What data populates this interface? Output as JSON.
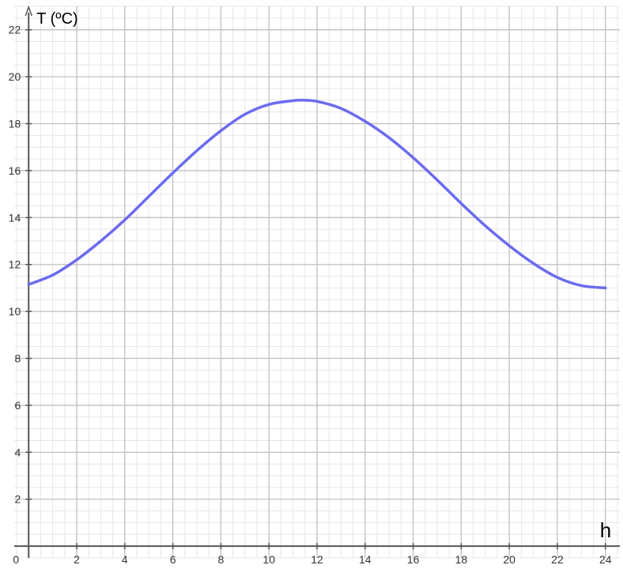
{
  "chart_data": {
    "type": "line",
    "title": "",
    "xlabel": "h",
    "ylabel": "T (ºC)",
    "xlim": [
      -0.6,
      24.6
    ],
    "ylim": [
      -0.5,
      23.0
    ],
    "x_ticks": [
      0,
      2,
      4,
      6,
      8,
      10,
      12,
      14,
      16,
      18,
      20,
      22,
      24
    ],
    "y_ticks": [
      2,
      4,
      6,
      8,
      10,
      12,
      14,
      16,
      18,
      20,
      22
    ],
    "x_tick_labels": [
      "0",
      "2",
      "4",
      "6",
      "8",
      "10",
      "12",
      "14",
      "16",
      "18",
      "20",
      "22",
      "24"
    ],
    "y_tick_labels": [
      "2",
      "4",
      "6",
      "8",
      "10",
      "12",
      "14",
      "16",
      "18",
      "20",
      "22"
    ],
    "grid": true,
    "series": [
      {
        "color": "#6b6bef",
        "x": [
          0,
          1,
          2,
          3,
          4,
          5,
          6,
          7,
          8,
          9,
          10,
          11,
          11.4,
          12,
          13,
          14,
          15,
          16,
          17,
          18,
          19,
          20,
          21,
          22,
          23,
          24
        ],
        "y": [
          11.15,
          11.55,
          12.2,
          13.0,
          13.9,
          14.9,
          15.9,
          16.85,
          17.7,
          18.4,
          18.82,
          18.98,
          19.0,
          18.95,
          18.65,
          18.1,
          17.4,
          16.55,
          15.6,
          14.6,
          13.65,
          12.8,
          12.05,
          11.45,
          11.1,
          11.0
        ]
      }
    ]
  }
}
